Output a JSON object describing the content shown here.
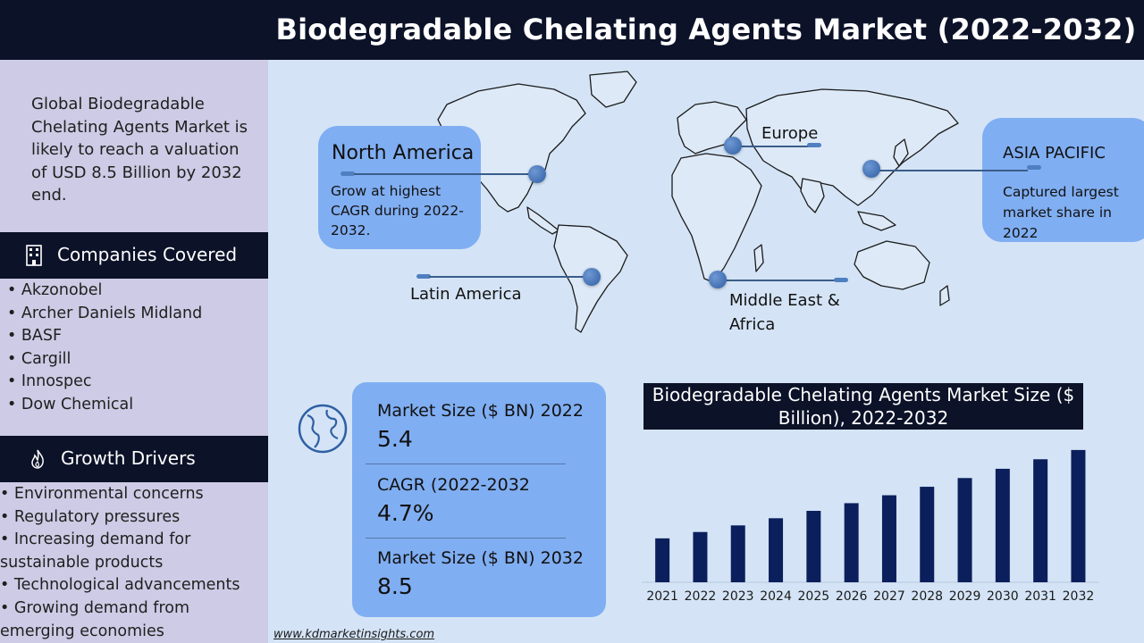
{
  "title": "Biodegradable Chelating Agents Market (2022-2032)",
  "intro": "Global Biodegradable Chelating Agents Market is likely to reach a valuation of USD 8.5 Billion by 2032 end.",
  "companies": {
    "heading": "Companies Covered",
    "items": [
      "• Akzonobel",
      "• Archer Daniels Midland",
      "• BASF",
      "• Cargill",
      "• Innospec",
      "• Dow Chemical"
    ]
  },
  "drivers": {
    "heading": "Growth Drivers",
    "items": [
      "• Environmental concerns",
      "• Regulatory pressures",
      "• Increasing demand for sustainable products",
      "• Technological advancements",
      "• Growing demand from emerging economies"
    ]
  },
  "map": {
    "north_america": {
      "title": "North America",
      "text": "Grow at highest CAGR during 2022-2032."
    },
    "asia_pacific": {
      "title": "ASIA PACIFIC",
      "text": "Captured largest market share in 2022"
    },
    "europe": "Europe",
    "latin_america": "Latin America",
    "mea": "Middle East & Africa"
  },
  "stats": [
    {
      "label": "Market Size ($ BN) 2022",
      "value": "5.4"
    },
    {
      "label": "CAGR (2022-2032",
      "value": "4.7%"
    },
    {
      "label": "Market Size ($ BN) 2032",
      "value": "8.5"
    }
  ],
  "footer": "www.kdmarketinsights.com",
  "colors": {
    "dark": "#0c1228",
    "accent": "#80aef2",
    "bar": "#0b1f5c",
    "panel": "#cdcbe5",
    "background": "#d4e4f6"
  },
  "chart_data": {
    "type": "bar",
    "title": "Biodegradable Chelating Agents Market Size ($ Billion), 2022-2032",
    "categories": [
      "2021",
      "2022",
      "2023",
      "2024",
      "2025",
      "2026",
      "2027",
      "2028",
      "2029",
      "2030",
      "2031",
      "2032"
    ],
    "values": [
      5.16,
      5.4,
      5.65,
      5.92,
      6.2,
      6.49,
      6.79,
      7.11,
      7.44,
      7.79,
      8.15,
      8.5
    ],
    "ylim": [
      3.5,
      8.8
    ],
    "grid": false,
    "xlabel": "",
    "ylabel": ""
  }
}
